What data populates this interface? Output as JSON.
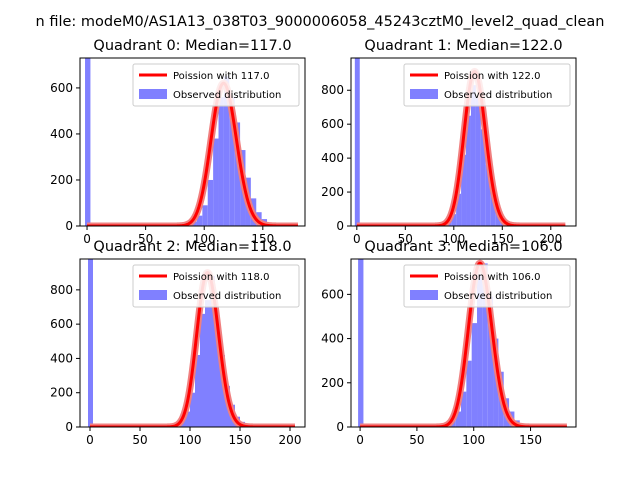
{
  "figure": {
    "suptitle": "n file: modeM0/AS1A13_038T03_9000006058_45243cztM0_level2_quad_clean"
  },
  "colors": {
    "line": "#ff0000",
    "line_halo": "#f08080",
    "bars": "#8080ff",
    "axes": "#000000",
    "legend_border": "#cccccc"
  },
  "chart_data": [
    {
      "type": "bar",
      "title": "Quadrant 0: Median=117.0",
      "xlim": [
        -6,
        186
      ],
      "ylim": [
        0,
        730
      ],
      "xticks": [
        0,
        50,
        100,
        150
      ],
      "yticks": [
        0,
        200,
        400,
        600
      ],
      "legend": {
        "position": "upper right",
        "line_label": "Poission with 117.0",
        "bar_label": "Observed distribution"
      },
      "poisson_mean": 117.0,
      "poisson_peak": 620,
      "bin_width": 4.6,
      "zero_bar": 730,
      "bars": [
        {
          "x": 80,
          "y": 3
        },
        {
          "x": 84.6,
          "y": 8
        },
        {
          "x": 89.2,
          "y": 20
        },
        {
          "x": 93.8,
          "y": 45
        },
        {
          "x": 98.4,
          "y": 90
        },
        {
          "x": 103,
          "y": 200
        },
        {
          "x": 107.6,
          "y": 380
        },
        {
          "x": 112.2,
          "y": 560
        },
        {
          "x": 116.8,
          "y": 650
        },
        {
          "x": 121.4,
          "y": 560
        },
        {
          "x": 126,
          "y": 450
        },
        {
          "x": 130.6,
          "y": 330
        },
        {
          "x": 135.2,
          "y": 210
        },
        {
          "x": 139.8,
          "y": 120
        },
        {
          "x": 144.4,
          "y": 60
        },
        {
          "x": 149,
          "y": 30
        },
        {
          "x": 153.6,
          "y": 15
        },
        {
          "x": 158.2,
          "y": 6
        },
        {
          "x": 162.8,
          "y": 3
        }
      ],
      "curve_range": [
        0,
        180
      ]
    },
    {
      "type": "bar",
      "title": "Quadrant 1: Median=122.0",
      "xlim": [
        -6,
        226
      ],
      "ylim": [
        0,
        990
      ],
      "xticks": [
        0,
        50,
        100,
        150,
        200
      ],
      "yticks": [
        0,
        200,
        400,
        600,
        800
      ],
      "legend": {
        "position": "upper right",
        "line_label": "Poission with 122.0",
        "bar_label": "Observed distribution"
      },
      "poisson_mean": 122.0,
      "poisson_peak": 910,
      "bin_width": 5.1,
      "zero_bar": 990,
      "bars": [
        {
          "x": 82,
          "y": 4
        },
        {
          "x": 87.1,
          "y": 10
        },
        {
          "x": 92.2,
          "y": 25
        },
        {
          "x": 97.3,
          "y": 70
        },
        {
          "x": 102.4,
          "y": 190
        },
        {
          "x": 107.5,
          "y": 420
        },
        {
          "x": 112.6,
          "y": 650
        },
        {
          "x": 117.7,
          "y": 830
        },
        {
          "x": 122.8,
          "y": 760
        },
        {
          "x": 127.9,
          "y": 570
        },
        {
          "x": 133,
          "y": 360
        },
        {
          "x": 138.1,
          "y": 200
        },
        {
          "x": 143.2,
          "y": 100
        },
        {
          "x": 148.3,
          "y": 45
        },
        {
          "x": 153.4,
          "y": 20
        },
        {
          "x": 158.5,
          "y": 8
        }
      ],
      "curve_range": [
        0,
        215
      ]
    },
    {
      "type": "bar",
      "title": "Quadrant 2: Median=118.0",
      "xlim": [
        -10,
        215
      ],
      "ylim": [
        0,
        980
      ],
      "xticks": [
        0,
        50,
        100,
        150,
        200
      ],
      "yticks": [
        0,
        200,
        400,
        600,
        800
      ],
      "legend": {
        "position": "upper right",
        "line_label": "Poission with 118.0",
        "bar_label": "Observed distribution"
      },
      "poisson_mean": 118.0,
      "poisson_peak": 900,
      "bin_width": 5.0,
      "zero_bar": 980,
      "bars": [
        {
          "x": 80,
          "y": 4
        },
        {
          "x": 85,
          "y": 12
        },
        {
          "x": 90,
          "y": 40
        },
        {
          "x": 95,
          "y": 90
        },
        {
          "x": 100,
          "y": 200
        },
        {
          "x": 105,
          "y": 420
        },
        {
          "x": 110,
          "y": 660
        },
        {
          "x": 115,
          "y": 740
        },
        {
          "x": 120,
          "y": 880
        },
        {
          "x": 125,
          "y": 650
        },
        {
          "x": 130,
          "y": 420
        },
        {
          "x": 135,
          "y": 240
        },
        {
          "x": 140,
          "y": 130
        },
        {
          "x": 145,
          "y": 60
        },
        {
          "x": 150,
          "y": 30
        },
        {
          "x": 155,
          "y": 10
        }
      ],
      "curve_range": [
        0,
        205
      ]
    },
    {
      "type": "bar",
      "title": "Quadrant 3: Median=106.0",
      "xlim": [
        -8,
        190
      ],
      "ylim": [
        0,
        760
      ],
      "xticks": [
        0,
        50,
        100,
        150
      ],
      "yticks": [
        0,
        200,
        400,
        600
      ],
      "legend": {
        "position": "upper right",
        "line_label": "Poission with 106.0",
        "bar_label": "Observed distribution"
      },
      "poisson_mean": 106.0,
      "poisson_peak": 740,
      "bin_width": 4.7,
      "zero_bar": 760,
      "bars": [
        {
          "x": 70,
          "y": 3
        },
        {
          "x": 74.7,
          "y": 10
        },
        {
          "x": 79.4,
          "y": 30
        },
        {
          "x": 84.1,
          "y": 70
        },
        {
          "x": 88.8,
          "y": 160
        },
        {
          "x": 93.5,
          "y": 300
        },
        {
          "x": 98.2,
          "y": 470
        },
        {
          "x": 102.9,
          "y": 690
        },
        {
          "x": 107.6,
          "y": 740
        },
        {
          "x": 112.3,
          "y": 590
        },
        {
          "x": 117,
          "y": 400
        },
        {
          "x": 121.7,
          "y": 250
        },
        {
          "x": 126.4,
          "y": 130
        },
        {
          "x": 131.1,
          "y": 70
        },
        {
          "x": 135.8,
          "y": 30
        },
        {
          "x": 140.5,
          "y": 12
        },
        {
          "x": 145.2,
          "y": 5
        }
      ],
      "curve_range": [
        0,
        182
      ]
    }
  ]
}
